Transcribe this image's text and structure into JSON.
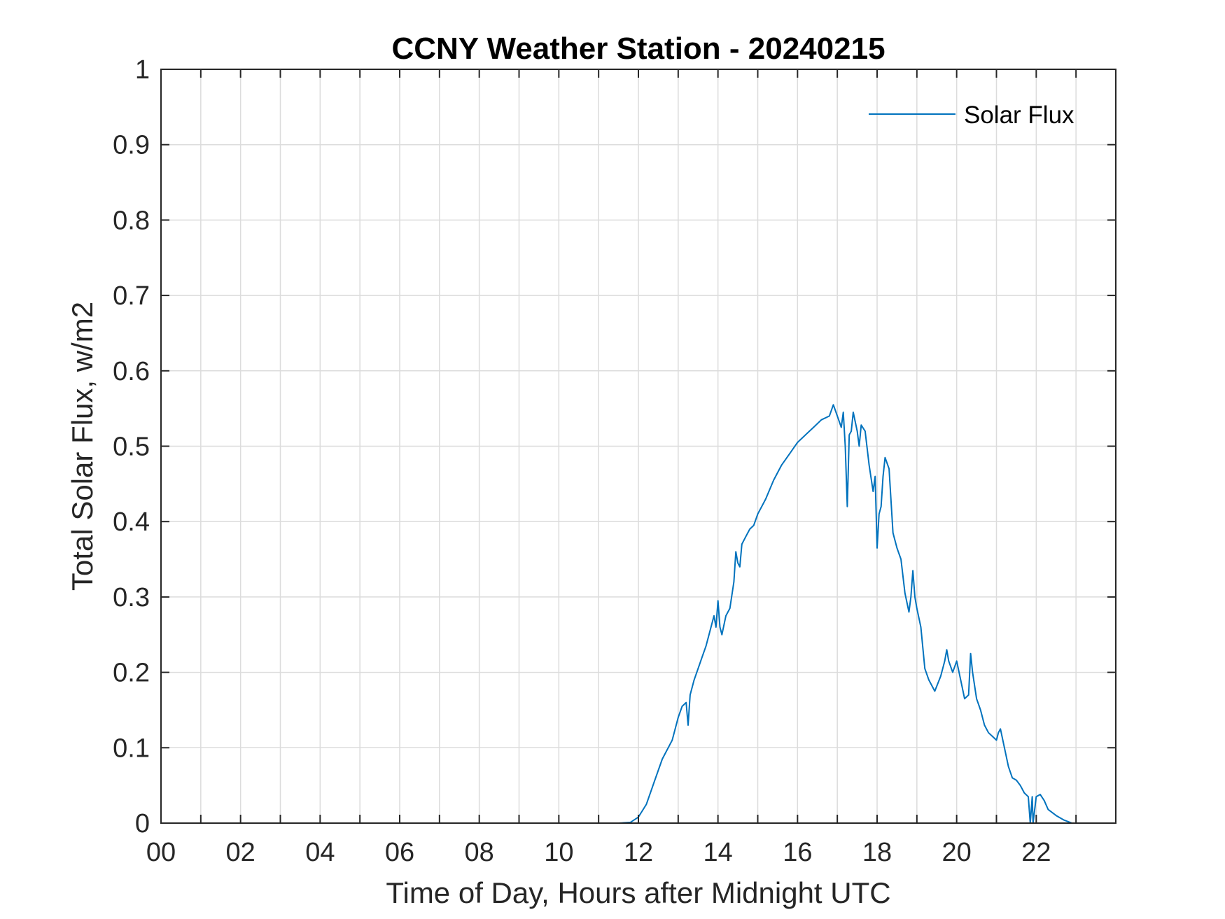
{
  "chart_data": {
    "type": "line",
    "title": "CCNY Weather Station - 20240215",
    "xlabel": "Time of Day, Hours after Midnight UTC",
    "ylabel": "Total Solar Flux, w/m2",
    "xlim": [
      0,
      24
    ],
    "ylim": [
      0,
      1
    ],
    "grid": true,
    "legend_position": "top-right",
    "x_ticks": [
      0,
      2,
      4,
      6,
      8,
      10,
      12,
      14,
      16,
      18,
      20,
      22
    ],
    "x_tick_labels": [
      "00",
      "02",
      "04",
      "06",
      "08",
      "10",
      "12",
      "14",
      "16",
      "18",
      "20",
      "22"
    ],
    "y_ticks": [
      0,
      0.1,
      0.2,
      0.3,
      0.4,
      0.5,
      0.6,
      0.7,
      0.8,
      0.9,
      1
    ],
    "y_tick_labels": [
      "0",
      "0.1",
      "0.2",
      "0.3",
      "0.4",
      "0.5",
      "0.6",
      "0.7",
      "0.8",
      "0.9",
      "1"
    ],
    "series": [
      {
        "name": "Solar Flux",
        "color": "#0072BD",
        "x": [
          0,
          11.5,
          11.8,
          12.0,
          12.2,
          12.4,
          12.6,
          12.75,
          12.85,
          13.0,
          13.1,
          13.2,
          13.25,
          13.3,
          13.4,
          13.5,
          13.6,
          13.7,
          13.8,
          13.9,
          13.95,
          14.0,
          14.05,
          14.1,
          14.2,
          14.3,
          14.4,
          14.45,
          14.5,
          14.55,
          14.6,
          14.7,
          14.8,
          14.9,
          15.0,
          15.1,
          15.2,
          15.4,
          15.6,
          15.8,
          16.0,
          16.2,
          16.4,
          16.6,
          16.8,
          16.9,
          17.0,
          17.1,
          17.15,
          17.2,
          17.25,
          17.3,
          17.35,
          17.4,
          17.5,
          17.55,
          17.6,
          17.7,
          17.8,
          17.9,
          17.95,
          18.0,
          18.05,
          18.1,
          18.15,
          18.2,
          18.3,
          18.4,
          18.5,
          18.6,
          18.7,
          18.8,
          18.85,
          18.9,
          18.95,
          19.0,
          19.1,
          19.2,
          19.3,
          19.45,
          19.6,
          19.7,
          19.75,
          19.8,
          19.9,
          20.0,
          20.1,
          20.2,
          20.3,
          20.35,
          20.4,
          20.5,
          20.6,
          20.7,
          20.8,
          20.9,
          21.0,
          21.05,
          21.1,
          21.2,
          21.3,
          21.4,
          21.5,
          21.6,
          21.7,
          21.8,
          21.85,
          21.9,
          21.92,
          22.0,
          22.1,
          22.2,
          22.3,
          22.5,
          22.7,
          22.9,
          23.0,
          24.0
        ],
        "values": [
          0,
          0,
          0.001,
          0.008,
          0.025,
          0.055,
          0.085,
          0.1,
          0.11,
          0.14,
          0.155,
          0.16,
          0.13,
          0.17,
          0.19,
          0.205,
          0.22,
          0.235,
          0.255,
          0.275,
          0.26,
          0.295,
          0.26,
          0.25,
          0.275,
          0.285,
          0.32,
          0.36,
          0.345,
          0.34,
          0.37,
          0.38,
          0.39,
          0.395,
          0.41,
          0.42,
          0.43,
          0.455,
          0.475,
          0.49,
          0.505,
          0.515,
          0.525,
          0.535,
          0.54,
          0.555,
          0.54,
          0.525,
          0.545,
          0.5,
          0.42,
          0.515,
          0.52,
          0.545,
          0.52,
          0.5,
          0.528,
          0.52,
          0.475,
          0.44,
          0.46,
          0.365,
          0.41,
          0.42,
          0.46,
          0.485,
          0.47,
          0.385,
          0.365,
          0.35,
          0.305,
          0.28,
          0.3,
          0.335,
          0.3,
          0.285,
          0.26,
          0.205,
          0.19,
          0.175,
          0.195,
          0.215,
          0.23,
          0.215,
          0.2,
          0.215,
          0.19,
          0.165,
          0.17,
          0.225,
          0.2,
          0.165,
          0.15,
          0.13,
          0.12,
          0.115,
          0.11,
          0.12,
          0.125,
          0.1,
          0.075,
          0.06,
          0.057,
          0.05,
          0.04,
          0.035,
          0.0,
          0.035,
          0.0,
          0.035,
          0.038,
          0.03,
          0.018,
          0.01,
          0.004,
          0.0,
          0,
          0
        ]
      }
    ]
  }
}
